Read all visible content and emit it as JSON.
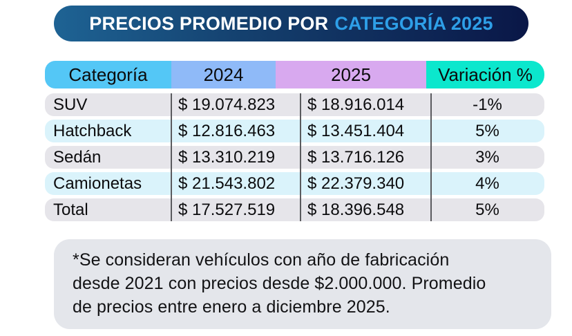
{
  "title": {
    "prefix": "PRECIOS PROMEDIO POR",
    "highlight": "CATEGORÍA 2025"
  },
  "table": {
    "headers": [
      "Categoría",
      "2024",
      "2025",
      "Variación %"
    ],
    "rows": [
      {
        "categoria": "SUV",
        "precio_2024": "$ 19.074.823",
        "precio_2025": "$ 18.916.014",
        "variacion": "-1%"
      },
      {
        "categoria": "Hatchback",
        "precio_2024": "$ 12.816.463",
        "precio_2025": "$ 13.451.404",
        "variacion": "5%"
      },
      {
        "categoria": "Sedán",
        "precio_2024": "$ 13.310.219",
        "precio_2025": "$ 13.716.126",
        "variacion": "3%"
      },
      {
        "categoria": "Camionetas",
        "precio_2024": "$ 21.543.802",
        "precio_2025": "$ 22.379.340",
        "variacion": "4%"
      },
      {
        "categoria": "Total",
        "precio_2024": "$ 17.527.519",
        "precio_2025": "$ 18.396.548",
        "variacion": "5%"
      }
    ]
  },
  "footnote": {
    "lines": [
      "*Se consideran vehículos con año de fabricación",
      "desde 2021 con precios desde $2.000.000. Promedio",
      "de precios entre enero a diciembre 2025."
    ]
  },
  "colors": {
    "pill-left": "#1e6394",
    "pill-right": "#0a1747",
    "title-text": "#ffffff",
    "title-accent": "#2e9fe8",
    "head-cat": "#54c7f6",
    "head-2024": "#8fbaf8",
    "head-2025": "#d8a9ef",
    "head-var": "#0be7cd",
    "row-gray": "#e6e5ea",
    "row-cyan": "#daf3fb",
    "divider": "#5a5a5e",
    "note-bg": "#e4e6eb"
  },
  "chart_data": {
    "type": "table",
    "title": "PRECIOS PROMEDIO POR CATEGORÍA 2025",
    "columns": [
      "Categoría",
      "2024",
      "2025",
      "Variación %"
    ],
    "rows": [
      [
        "SUV",
        19074823,
        18916014,
        "-1%"
      ],
      [
        "Hatchback",
        12816463,
        13451404,
        "5%"
      ],
      [
        "Sedán",
        13310219,
        13716126,
        "3%"
      ],
      [
        "Camionetas",
        21543802,
        22379340,
        "4%"
      ],
      [
        "Total",
        17527519,
        18396548,
        "5%"
      ]
    ],
    "note": "*Se consideran vehículos con año de fabricación desde 2021 con precios desde $2.000.000. Promedio de precios entre enero a diciembre 2025."
  }
}
